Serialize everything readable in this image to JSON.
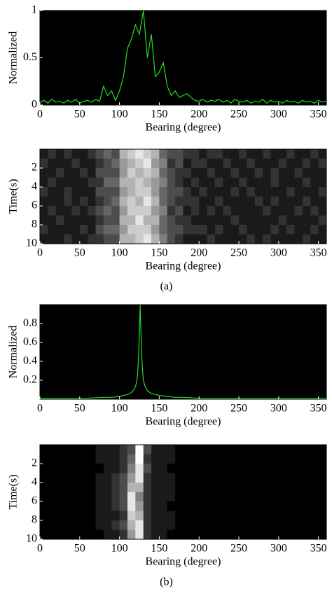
{
  "chart_data": [
    {
      "type": "line",
      "xlabel": "Bearing (degree)",
      "ylabel": "Normalized",
      "x": [
        0,
        5,
        10,
        15,
        20,
        25,
        30,
        35,
        40,
        45,
        50,
        55,
        60,
        65,
        70,
        75,
        80,
        85,
        90,
        95,
        100,
        105,
        110,
        115,
        120,
        125,
        130,
        135,
        140,
        145,
        150,
        155,
        160,
        165,
        170,
        175,
        180,
        185,
        190,
        195,
        200,
        205,
        210,
        215,
        220,
        225,
        230,
        235,
        240,
        245,
        250,
        255,
        260,
        265,
        270,
        275,
        280,
        285,
        290,
        295,
        300,
        305,
        310,
        315,
        320,
        325,
        330,
        335,
        340,
        345,
        350,
        355,
        360
      ],
      "series": [
        {
          "color": "#22dd22",
          "values": [
            0.03,
            0.05,
            0.02,
            0.06,
            0.03,
            0.04,
            0.02,
            0.05,
            0.03,
            0.06,
            0.02,
            0.04,
            0.05,
            0.03,
            0.06,
            0.04,
            0.2,
            0.1,
            0.15,
            0.05,
            0.15,
            0.3,
            0.6,
            0.7,
            0.85,
            0.75,
            1.0,
            0.5,
            0.75,
            0.3,
            0.35,
            0.45,
            0.2,
            0.1,
            0.15,
            0.08,
            0.1,
            0.12,
            0.08,
            0.05,
            0.04,
            0.06,
            0.03,
            0.05,
            0.04,
            0.06,
            0.03,
            0.05,
            0.02,
            0.06,
            0.04,
            0.03,
            0.05,
            0.02,
            0.04,
            0.03,
            0.06,
            0.02,
            0.05,
            0.03,
            0.04,
            0.02,
            0.05,
            0.03,
            0.04,
            0.02,
            0.05,
            0.03,
            0.04,
            0.02,
            0.05,
            0.03,
            0.04
          ]
        }
      ],
      "xlim": [
        0,
        360
      ],
      "xticks": [
        0,
        50,
        100,
        150,
        200,
        250,
        300,
        350
      ],
      "ylim": [
        0,
        1
      ],
      "yticks": [
        0,
        0.5,
        1
      ]
    },
    {
      "type": "heatmap",
      "xlabel": "Bearing (degree)",
      "ylabel": "Time(s)",
      "caption": "(a)",
      "bins": [
        0,
        10,
        20,
        30,
        40,
        50,
        60,
        70,
        80,
        90,
        100,
        110,
        120,
        130,
        140,
        150,
        160,
        170,
        180,
        190,
        200,
        210,
        220,
        230,
        240,
        250,
        260,
        270,
        280,
        290,
        300,
        310,
        320,
        330,
        340,
        350,
        360
      ],
      "rows": [
        [
          0.1,
          0.2,
          0.1,
          0.2,
          0.1,
          0.1,
          0.2,
          0.3,
          0.4,
          0.3,
          0.7,
          0.8,
          0.9,
          0.8,
          0.7,
          0.4,
          0.3,
          0.3,
          0.2,
          0.2,
          0.1,
          0.2,
          0.2,
          0.1,
          0.1,
          0.2,
          0.1,
          0.1,
          0.2,
          0.1,
          0.1,
          0.2,
          0.1,
          0.1,
          0.2,
          0.1
        ],
        [
          0.2,
          0.1,
          0.1,
          0.1,
          0.2,
          0.1,
          0.1,
          0.2,
          0.3,
          0.4,
          0.6,
          0.7,
          0.8,
          0.9,
          0.6,
          0.5,
          0.2,
          0.3,
          0.1,
          0.2,
          0.2,
          0.1,
          0.1,
          0.2,
          0.1,
          0.1,
          0.2,
          0.1,
          0.1,
          0.1,
          0.2,
          0.1,
          0.1,
          0.2,
          0.1,
          0.2
        ],
        [
          0.1,
          0.1,
          0.2,
          0.1,
          0.1,
          0.2,
          0.1,
          0.3,
          0.3,
          0.3,
          0.6,
          0.8,
          0.7,
          0.8,
          0.7,
          0.4,
          0.3,
          0.2,
          0.2,
          0.1,
          0.1,
          0.2,
          0.1,
          0.1,
          0.2,
          0.1,
          0.1,
          0.2,
          0.1,
          0.2,
          0.1,
          0.1,
          0.2,
          0.1,
          0.1,
          0.1
        ],
        [
          0.1,
          0.2,
          0.1,
          0.1,
          0.1,
          0.1,
          0.2,
          0.2,
          0.4,
          0.4,
          0.7,
          0.7,
          0.8,
          0.7,
          0.6,
          0.5,
          0.3,
          0.2,
          0.1,
          0.2,
          0.1,
          0.1,
          0.2,
          0.1,
          0.1,
          0.2,
          0.1,
          0.1,
          0.1,
          0.2,
          0.1,
          0.1,
          0.1,
          0.2,
          0.1,
          0.1
        ],
        [
          0.2,
          0.1,
          0.1,
          0.2,
          0.1,
          0.1,
          0.1,
          0.3,
          0.3,
          0.3,
          0.6,
          0.7,
          0.8,
          0.8,
          0.6,
          0.4,
          0.3,
          0.3,
          0.2,
          0.1,
          0.2,
          0.1,
          0.1,
          0.1,
          0.2,
          0.1,
          0.2,
          0.1,
          0.1,
          0.1,
          0.1,
          0.2,
          0.1,
          0.1,
          0.1,
          0.2
        ],
        [
          0.1,
          0.1,
          0.1,
          0.2,
          0.1,
          0.2,
          0.1,
          0.2,
          0.3,
          0.4,
          0.7,
          0.8,
          0.7,
          0.9,
          0.7,
          0.4,
          0.3,
          0.2,
          0.2,
          0.2,
          0.1,
          0.1,
          0.2,
          0.1,
          0.1,
          0.1,
          0.1,
          0.2,
          0.1,
          0.2,
          0.1,
          0.1,
          0.1,
          0.2,
          0.1,
          0.1
        ],
        [
          0.1,
          0.2,
          0.1,
          0.1,
          0.2,
          0.1,
          0.2,
          0.3,
          0.4,
          0.3,
          0.6,
          0.8,
          0.8,
          0.8,
          0.6,
          0.5,
          0.2,
          0.3,
          0.1,
          0.2,
          0.1,
          0.2,
          0.1,
          0.2,
          0.1,
          0.1,
          0.1,
          0.1,
          0.2,
          0.1,
          0.1,
          0.1,
          0.2,
          0.1,
          0.2,
          0.1
        ],
        [
          0.1,
          0.1,
          0.2,
          0.1,
          0.1,
          0.1,
          0.1,
          0.2,
          0.3,
          0.3,
          0.7,
          0.7,
          0.9,
          0.7,
          0.7,
          0.4,
          0.3,
          0.2,
          0.2,
          0.1,
          0.1,
          0.1,
          0.1,
          0.1,
          0.2,
          0.1,
          0.1,
          0.1,
          0.1,
          0.1,
          0.2,
          0.1,
          0.1,
          0.1,
          0.1,
          0.2
        ],
        [
          0.2,
          0.1,
          0.1,
          0.1,
          0.1,
          0.2,
          0.1,
          0.3,
          0.4,
          0.4,
          0.6,
          0.8,
          0.8,
          0.8,
          0.6,
          0.4,
          0.3,
          0.3,
          0.2,
          0.2,
          0.2,
          0.1,
          0.2,
          0.1,
          0.1,
          0.2,
          0.1,
          0.1,
          0.1,
          0.2,
          0.1,
          0.2,
          0.1,
          0.1,
          0.2,
          0.1
        ],
        [
          0.1,
          0.1,
          0.1,
          0.2,
          0.1,
          0.1,
          0.2,
          0.2,
          0.3,
          0.3,
          0.7,
          0.7,
          0.8,
          0.9,
          0.7,
          0.5,
          0.3,
          0.2,
          0.1,
          0.1,
          0.1,
          0.2,
          0.1,
          0.1,
          0.1,
          0.1,
          0.2,
          0.1,
          0.2,
          0.1,
          0.1,
          0.1,
          0.1,
          0.2,
          0.1,
          0.1
        ]
      ],
      "xlim": [
        0,
        360
      ],
      "xticks": [
        0,
        50,
        100,
        150,
        200,
        250,
        300,
        350
      ],
      "ylim": [
        0,
        10
      ],
      "yticks": [
        2,
        4,
        6,
        8,
        10
      ]
    },
    {
      "type": "line",
      "xlabel": "Bearing (degree)",
      "ylabel": "Normalized",
      "x": [
        0,
        20,
        40,
        60,
        80,
        90,
        100,
        105,
        110,
        115,
        118,
        120,
        122,
        123,
        124,
        125,
        126,
        127,
        128,
        129,
        130,
        132,
        135,
        140,
        145,
        150,
        160,
        170,
        180,
        200,
        220,
        240,
        260,
        280,
        300,
        320,
        340,
        360
      ],
      "series": [
        {
          "color": "#22dd22",
          "values": [
            0.01,
            0.01,
            0.01,
            0.01,
            0.02,
            0.02,
            0.03,
            0.04,
            0.05,
            0.07,
            0.1,
            0.13,
            0.2,
            0.3,
            0.45,
            0.7,
            1.0,
            0.7,
            0.45,
            0.3,
            0.2,
            0.14,
            0.09,
            0.06,
            0.05,
            0.04,
            0.03,
            0.02,
            0.02,
            0.01,
            0.01,
            0.01,
            0.01,
            0.01,
            0.01,
            0.01,
            0.01,
            0.01
          ]
        }
      ],
      "xlim": [
        0,
        360
      ],
      "xticks": [
        0,
        50,
        100,
        150,
        200,
        250,
        300,
        350
      ],
      "ylim": [
        0,
        1
      ],
      "yticks": [
        0.2,
        0.4,
        0.6,
        0.8
      ]
    },
    {
      "type": "heatmap",
      "xlabel": "Bearing (degree)",
      "ylabel": "Time(s)",
      "caption": "(b)",
      "bins": [
        0,
        10,
        20,
        30,
        40,
        50,
        60,
        70,
        80,
        90,
        100,
        110,
        120,
        130,
        140,
        150,
        160,
        170,
        180,
        190,
        200,
        210,
        220,
        230,
        240,
        250,
        260,
        270,
        280,
        290,
        300,
        310,
        320,
        330,
        340,
        350,
        360
      ],
      "rows": [
        [
          0,
          0,
          0,
          0,
          0,
          0,
          0,
          0.1,
          0.1,
          0.1,
          0.2,
          0.3,
          1.0,
          0.3,
          0.1,
          0.1,
          0.1,
          0,
          0,
          0,
          0,
          0,
          0,
          0,
          0,
          0,
          0,
          0,
          0,
          0,
          0,
          0,
          0,
          0,
          0,
          0
        ],
        [
          0,
          0,
          0,
          0,
          0,
          0,
          0,
          0.1,
          0.1,
          0.1,
          0.2,
          0.4,
          1.0,
          0.2,
          0.1,
          0.1,
          0.1,
          0,
          0,
          0,
          0,
          0,
          0,
          0,
          0,
          0,
          0,
          0,
          0,
          0,
          0,
          0,
          0,
          0,
          0,
          0
        ],
        [
          0,
          0,
          0,
          0,
          0,
          0,
          0,
          0,
          0.1,
          0.1,
          0.2,
          0.5,
          0.9,
          0.3,
          0.1,
          0.1,
          0,
          0,
          0,
          0,
          0,
          0,
          0,
          0,
          0,
          0,
          0,
          0,
          0,
          0,
          0,
          0,
          0,
          0,
          0,
          0
        ],
        [
          0,
          0,
          0,
          0,
          0,
          0,
          0,
          0.1,
          0.1,
          0.2,
          0.3,
          0.6,
          0.9,
          0.2,
          0.1,
          0.1,
          0.1,
          0,
          0,
          0,
          0,
          0,
          0,
          0,
          0,
          0,
          0,
          0,
          0,
          0,
          0,
          0,
          0,
          0,
          0,
          0
        ],
        [
          0,
          0,
          0,
          0,
          0,
          0,
          0,
          0.1,
          0.1,
          0.2,
          0.3,
          0.7,
          0.7,
          0.2,
          0.1,
          0.1,
          0.1,
          0,
          0,
          0,
          0,
          0,
          0,
          0,
          0,
          0,
          0,
          0,
          0,
          0,
          0,
          0,
          0,
          0,
          0,
          0
        ],
        [
          0,
          0,
          0,
          0,
          0,
          0,
          0,
          0.1,
          0.1,
          0.2,
          0.3,
          0.9,
          0.5,
          0.2,
          0.1,
          0.1,
          0.1,
          0,
          0,
          0,
          0,
          0,
          0,
          0,
          0,
          0,
          0,
          0,
          0,
          0,
          0,
          0,
          0,
          0,
          0,
          0
        ],
        [
          0,
          0,
          0,
          0,
          0,
          0,
          0,
          0.1,
          0.1,
          0.2,
          0.3,
          0.9,
          0.6,
          0.2,
          0.1,
          0.1,
          0,
          0,
          0,
          0,
          0,
          0,
          0,
          0,
          0,
          0,
          0,
          0,
          0,
          0,
          0,
          0,
          0,
          0,
          0,
          0
        ],
        [
          0,
          0,
          0,
          0,
          0,
          0,
          0,
          0.1,
          0.1,
          0.1,
          0.2,
          0.8,
          0.7,
          0.2,
          0.1,
          0.1,
          0.1,
          0,
          0,
          0,
          0,
          0,
          0,
          0,
          0,
          0,
          0,
          0,
          0,
          0,
          0,
          0,
          0,
          0,
          0,
          0
        ],
        [
          0,
          0,
          0,
          0,
          0,
          0,
          0,
          0.1,
          0.1,
          0.2,
          0.3,
          0.7,
          0.9,
          0.2,
          0.1,
          0.1,
          0.1,
          0,
          0,
          0,
          0,
          0,
          0,
          0,
          0,
          0,
          0,
          0,
          0,
          0,
          0,
          0,
          0,
          0,
          0,
          0
        ],
        [
          0,
          0,
          0,
          0,
          0,
          0,
          0,
          0,
          0.1,
          0.1,
          0.2,
          0.6,
          0.9,
          0.2,
          0.1,
          0.1,
          0,
          0,
          0,
          0,
          0,
          0,
          0,
          0,
          0,
          0,
          0,
          0,
          0,
          0,
          0,
          0,
          0,
          0,
          0,
          0
        ]
      ],
      "xlim": [
        0,
        360
      ],
      "xticks": [
        0,
        50,
        100,
        150,
        200,
        250,
        300,
        350
      ],
      "ylim": [
        0,
        10
      ],
      "yticks": [
        2,
        4,
        6,
        8,
        10
      ]
    }
  ]
}
